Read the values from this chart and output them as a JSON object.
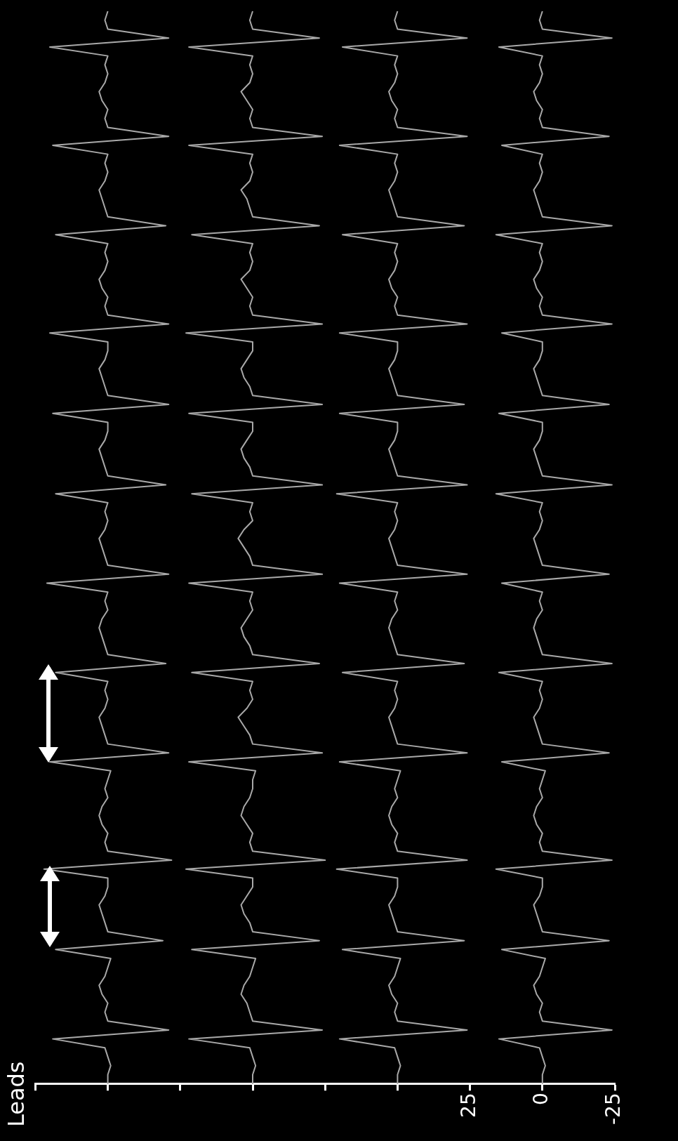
{
  "chart_data": {
    "type": "line",
    "title": "Leads",
    "orientation": "horizontal",
    "categories": [
      null,
      null,
      null,
      null,
      null,
      null,
      null,
      null,
      null,
      null,
      null,
      null,
      null,
      null,
      null,
      null,
      null,
      null,
      null,
      null,
      null,
      null,
      null,
      null,
      null,
      null,
      null,
      null,
      null,
      null,
      null,
      null,
      null,
      null,
      null,
      null,
      null,
      null,
      null,
      null,
      null,
      null,
      null,
      null,
      null,
      null,
      null,
      null,
      null,
      null,
      null,
      null,
      null,
      null,
      null,
      null,
      null,
      null,
      null,
      null,
      null,
      null,
      null,
      null,
      null,
      null,
      null,
      null,
      null,
      null,
      null,
      null,
      null,
      null,
      null,
      null,
      null,
      null,
      null,
      null,
      null,
      null,
      null,
      null,
      null,
      null,
      null,
      null,
      null,
      null,
      null,
      null,
      null,
      null,
      null,
      null,
      null,
      null,
      null,
      null,
      null,
      null,
      null,
      null,
      null,
      null,
      null,
      null,
      null,
      null,
      null,
      null,
      null,
      null,
      null,
      null,
      null,
      null,
      null,
      null,
      null
    ],
    "series": [
      {
        "color": "#a9a9a9",
        "values": [
          150,
          151,
          150,
          129,
          170,
          150,
          151,
          150,
          151,
          153,
          152,
          150,
          151,
          150,
          129,
          169,
          150,
          151,
          150,
          151,
          153,
          152,
          151,
          150,
          130,
          168,
          150,
          151,
          150,
          151,
          153,
          152,
          150,
          151,
          150,
          129,
          170,
          150,
          150,
          151,
          153,
          152,
          151,
          150,
          129,
          169,
          150,
          150,
          151,
          153,
          152,
          151,
          150,
          130,
          168,
          150,
          151,
          150,
          151,
          153,
          152,
          151,
          150,
          129,
          171,
          150,
          151,
          150,
          152,
          153,
          152,
          151,
          150,
          130,
          168,
          150,
          151,
          150,
          151,
          153,
          152,
          151,
          150,
          129,
          170,
          149,
          150,
          151,
          150,
          152,
          153,
          152,
          150,
          151,
          150,
          128,
          172,
          150,
          150,
          151,
          153,
          152,
          151,
          150,
          131,
          168,
          149,
          150,
          151,
          153,
          152,
          150,
          151,
          150,
          129,
          169,
          151,
          150,
          149,
          150,
          150
        ]
      },
      {
        "color": "#a9a9a9",
        "values": [
          100,
          101,
          100,
          77,
          122,
          100,
          101,
          100,
          101,
          104,
          102,
          100,
          101,
          100,
          76,
          122,
          100,
          101,
          100,
          101,
          104,
          102,
          101,
          100,
          77,
          121,
          100,
          101,
          100,
          101,
          104,
          102,
          100,
          101,
          100,
          76,
          123,
          100,
          100,
          102,
          104,
          103,
          101,
          100,
          76,
          122,
          100,
          100,
          102,
          104,
          103,
          101,
          100,
          76,
          121,
          100,
          101,
          100,
          103,
          105,
          103,
          101,
          100,
          76,
          122,
          100,
          101,
          100,
          102,
          104,
          103,
          101,
          100,
          77,
          121,
          100,
          101,
          100,
          102,
          105,
          103,
          101,
          100,
          76,
          122,
          99,
          100,
          100,
          101,
          103,
          104,
          102,
          100,
          101,
          100,
          75,
          123,
          100,
          100,
          102,
          104,
          103,
          101,
          100,
          77,
          121,
          99,
          100,
          101,
          103,
          104,
          102,
          101,
          100,
          76,
          122,
          101,
          100,
          99,
          100,
          100
        ]
      },
      {
        "color": "#a9a9a9",
        "values": [
          50,
          51,
          50,
          26,
          69,
          50,
          51,
          50,
          51,
          53,
          52,
          50,
          51,
          50,
          26,
          70,
          50,
          51,
          50,
          51,
          53,
          52,
          51,
          50,
          27,
          69,
          50,
          51,
          50,
          51,
          53,
          52,
          50,
          51,
          50,
          26,
          70,
          50,
          50,
          51,
          53,
          52,
          51,
          50,
          27,
          70,
          50,
          50,
          51,
          53,
          52,
          51,
          50,
          26,
          71,
          50,
          51,
          50,
          51,
          53,
          52,
          51,
          50,
          26,
          70,
          50,
          51,
          50,
          52,
          53,
          52,
          51,
          50,
          27,
          69,
          50,
          51,
          50,
          51,
          53,
          52,
          51,
          50,
          26,
          70,
          49,
          50,
          51,
          50,
          52,
          53,
          52,
          50,
          51,
          50,
          26,
          71,
          50,
          50,
          51,
          53,
          52,
          51,
          50,
          27,
          69,
          49,
          50,
          51,
          53,
          52,
          50,
          51,
          50,
          26,
          70,
          51,
          50,
          49,
          50,
          50
        ]
      },
      {
        "color": "#a9a9a9",
        "values": [
          0,
          1,
          0,
          -24,
          15,
          0,
          1,
          0,
          1,
          3,
          2,
          0,
          1,
          0,
          -23,
          14,
          0,
          1,
          0,
          1,
          3,
          2,
          1,
          0,
          -24,
          16,
          0,
          1,
          0,
          1,
          3,
          2,
          0,
          1,
          0,
          -24,
          14,
          0,
          0,
          1,
          3,
          2,
          1,
          0,
          -23,
          15,
          0,
          0,
          1,
          3,
          2,
          1,
          0,
          -24,
          16,
          0,
          1,
          0,
          1,
          3,
          2,
          1,
          0,
          -23,
          14,
          0,
          1,
          0,
          2,
          3,
          2,
          1,
          0,
          -24,
          15,
          0,
          1,
          0,
          1,
          3,
          2,
          1,
          0,
          -23,
          14,
          -1,
          0,
          1,
          0,
          2,
          3,
          2,
          0,
          1,
          0,
          -24,
          16,
          0,
          0,
          1,
          3,
          2,
          1,
          0,
          -23,
          14,
          -1,
          0,
          1,
          3,
          2,
          0,
          1,
          0,
          -24,
          15,
          1,
          0,
          -1,
          0,
          0
        ]
      }
    ],
    "xlim": [
      175,
      -25
    ],
    "xticks": [
      {
        "value": 175,
        "label": null
      },
      {
        "value": 150,
        "label": null
      },
      {
        "value": 125,
        "label": null
      },
      {
        "value": 100,
        "label": null
      },
      {
        "value": 75,
        "label": null
      },
      {
        "value": 50,
        "label": null
      },
      25,
      0,
      -25
    ],
    "tick_labels": "x",
    "legend": false,
    "marker": "none",
    "grid": false
  }
}
